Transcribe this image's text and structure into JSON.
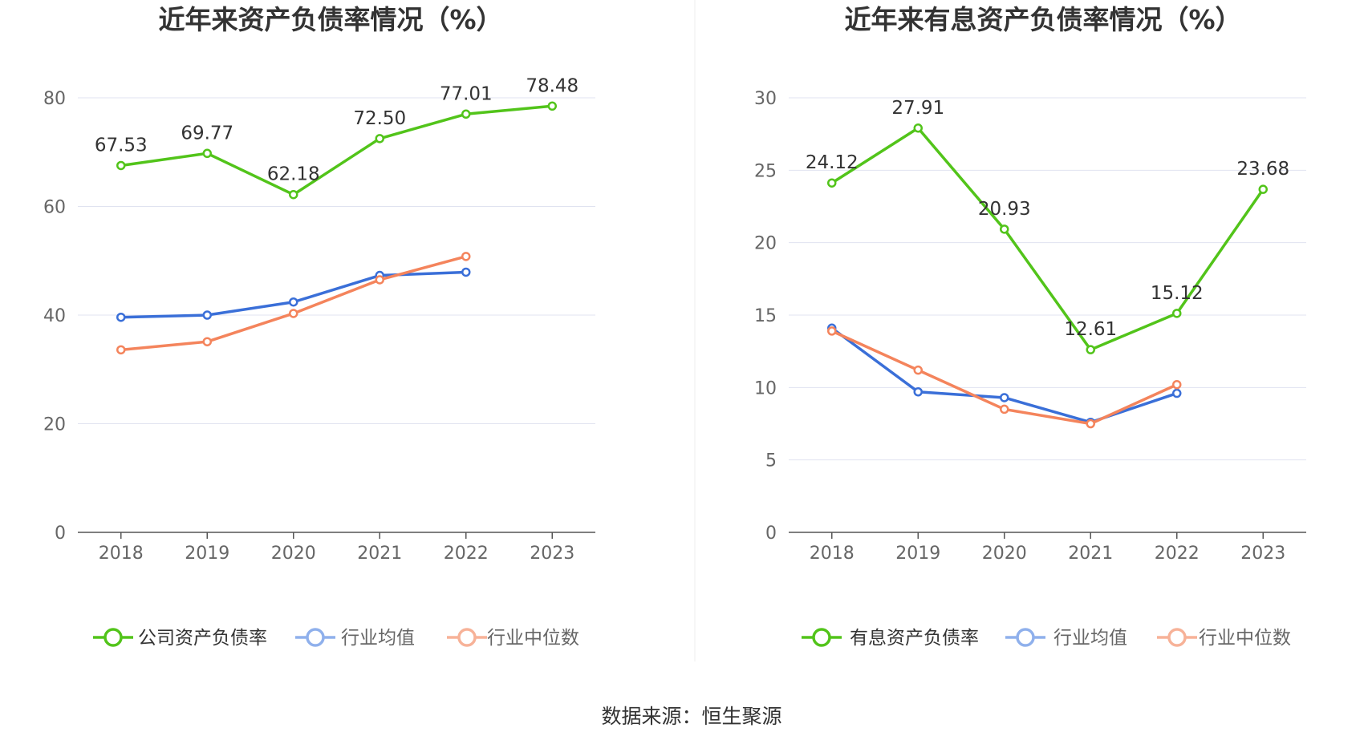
{
  "source": "数据来源：恒生聚源",
  "chart_data": [
    {
      "type": "line",
      "title": "近年来资产负债率情况（%）",
      "x": [
        "2018",
        "2019",
        "2020",
        "2021",
        "2022",
        "2023"
      ],
      "ylim": [
        0,
        80
      ],
      "yticks": [
        0,
        20,
        40,
        60,
        80
      ],
      "grid": true,
      "legend_position": "bottom",
      "series": [
        {
          "name": "公司资产负债率",
          "color": "#52c41a",
          "values": [
            67.53,
            69.77,
            62.18,
            72.5,
            77.01,
            78.48
          ],
          "labels": [
            "67.53",
            "69.77",
            "62.18",
            "72.50",
            "77.01",
            "78.48"
          ]
        },
        {
          "name": "行业均值",
          "color": "#3a6fd8",
          "values": [
            39.6,
            40.0,
            42.4,
            47.3,
            47.9,
            null
          ]
        },
        {
          "name": "行业中位数",
          "color": "#f4845c",
          "values": [
            33.6,
            35.1,
            40.3,
            46.5,
            50.8,
            null
          ]
        }
      ]
    },
    {
      "type": "line",
      "title": "近年来有息资产负债率情况（%）",
      "x": [
        "2018",
        "2019",
        "2020",
        "2021",
        "2022",
        "2023"
      ],
      "ylim": [
        0,
        30
      ],
      "yticks": [
        0,
        5,
        10,
        15,
        20,
        25,
        30
      ],
      "grid": true,
      "legend_position": "bottom",
      "series": [
        {
          "name": "有息资产负债率",
          "color": "#52c41a",
          "values": [
            24.12,
            27.91,
            20.93,
            12.61,
            15.12,
            23.68
          ],
          "labels": [
            "24.12",
            "27.91",
            "20.93",
            "12.61",
            "15.12",
            "23.68"
          ]
        },
        {
          "name": "行业均值",
          "color": "#3a6fd8",
          "values": [
            14.1,
            9.7,
            9.3,
            7.6,
            9.6,
            null
          ]
        },
        {
          "name": "行业中位数",
          "color": "#f4845c",
          "values": [
            13.9,
            11.2,
            8.5,
            7.5,
            10.2,
            null
          ]
        }
      ]
    }
  ]
}
